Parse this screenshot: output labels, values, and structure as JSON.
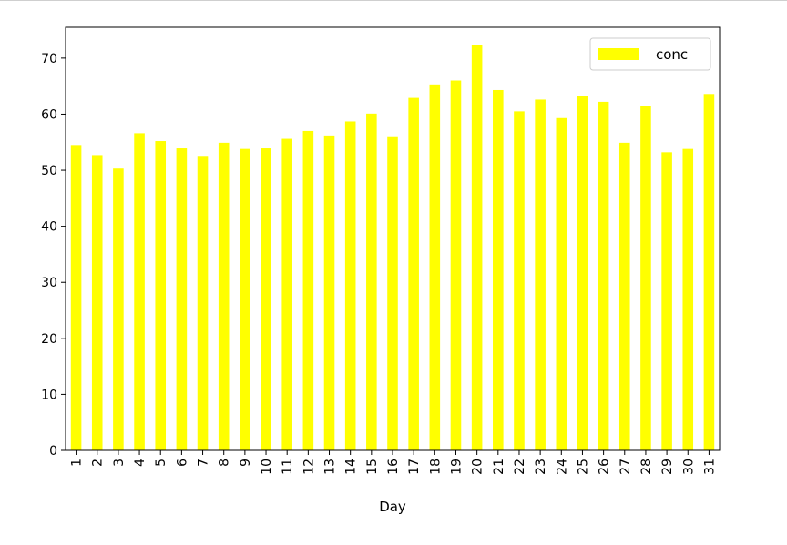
{
  "chart_data": {
    "type": "bar",
    "title": "",
    "xlabel": "Day",
    "ylabel": "",
    "categories": [
      "1",
      "2",
      "3",
      "4",
      "5",
      "6",
      "7",
      "8",
      "9",
      "10",
      "11",
      "12",
      "13",
      "14",
      "15",
      "16",
      "17",
      "18",
      "19",
      "20",
      "21",
      "22",
      "23",
      "24",
      "25",
      "26",
      "27",
      "28",
      "29",
      "30",
      "31"
    ],
    "series": [
      {
        "name": "conc",
        "color": "#ffff00",
        "values": [
          54.5,
          52.7,
          50.3,
          56.6,
          55.2,
          53.9,
          52.4,
          54.9,
          53.8,
          53.9,
          55.6,
          57.0,
          56.2,
          58.7,
          60.1,
          55.9,
          62.9,
          65.3,
          66.0,
          72.3,
          64.3,
          60.5,
          62.6,
          59.3,
          63.2,
          62.2,
          54.9,
          61.4,
          53.2,
          53.8,
          63.6
        ]
      }
    ],
    "ylim": [
      0,
      75.5
    ],
    "yticks": [
      0,
      10,
      20,
      30,
      40,
      50,
      60,
      70
    ],
    "grid": false,
    "legend": {
      "position": "top-right",
      "entries": [
        "conc"
      ]
    }
  }
}
